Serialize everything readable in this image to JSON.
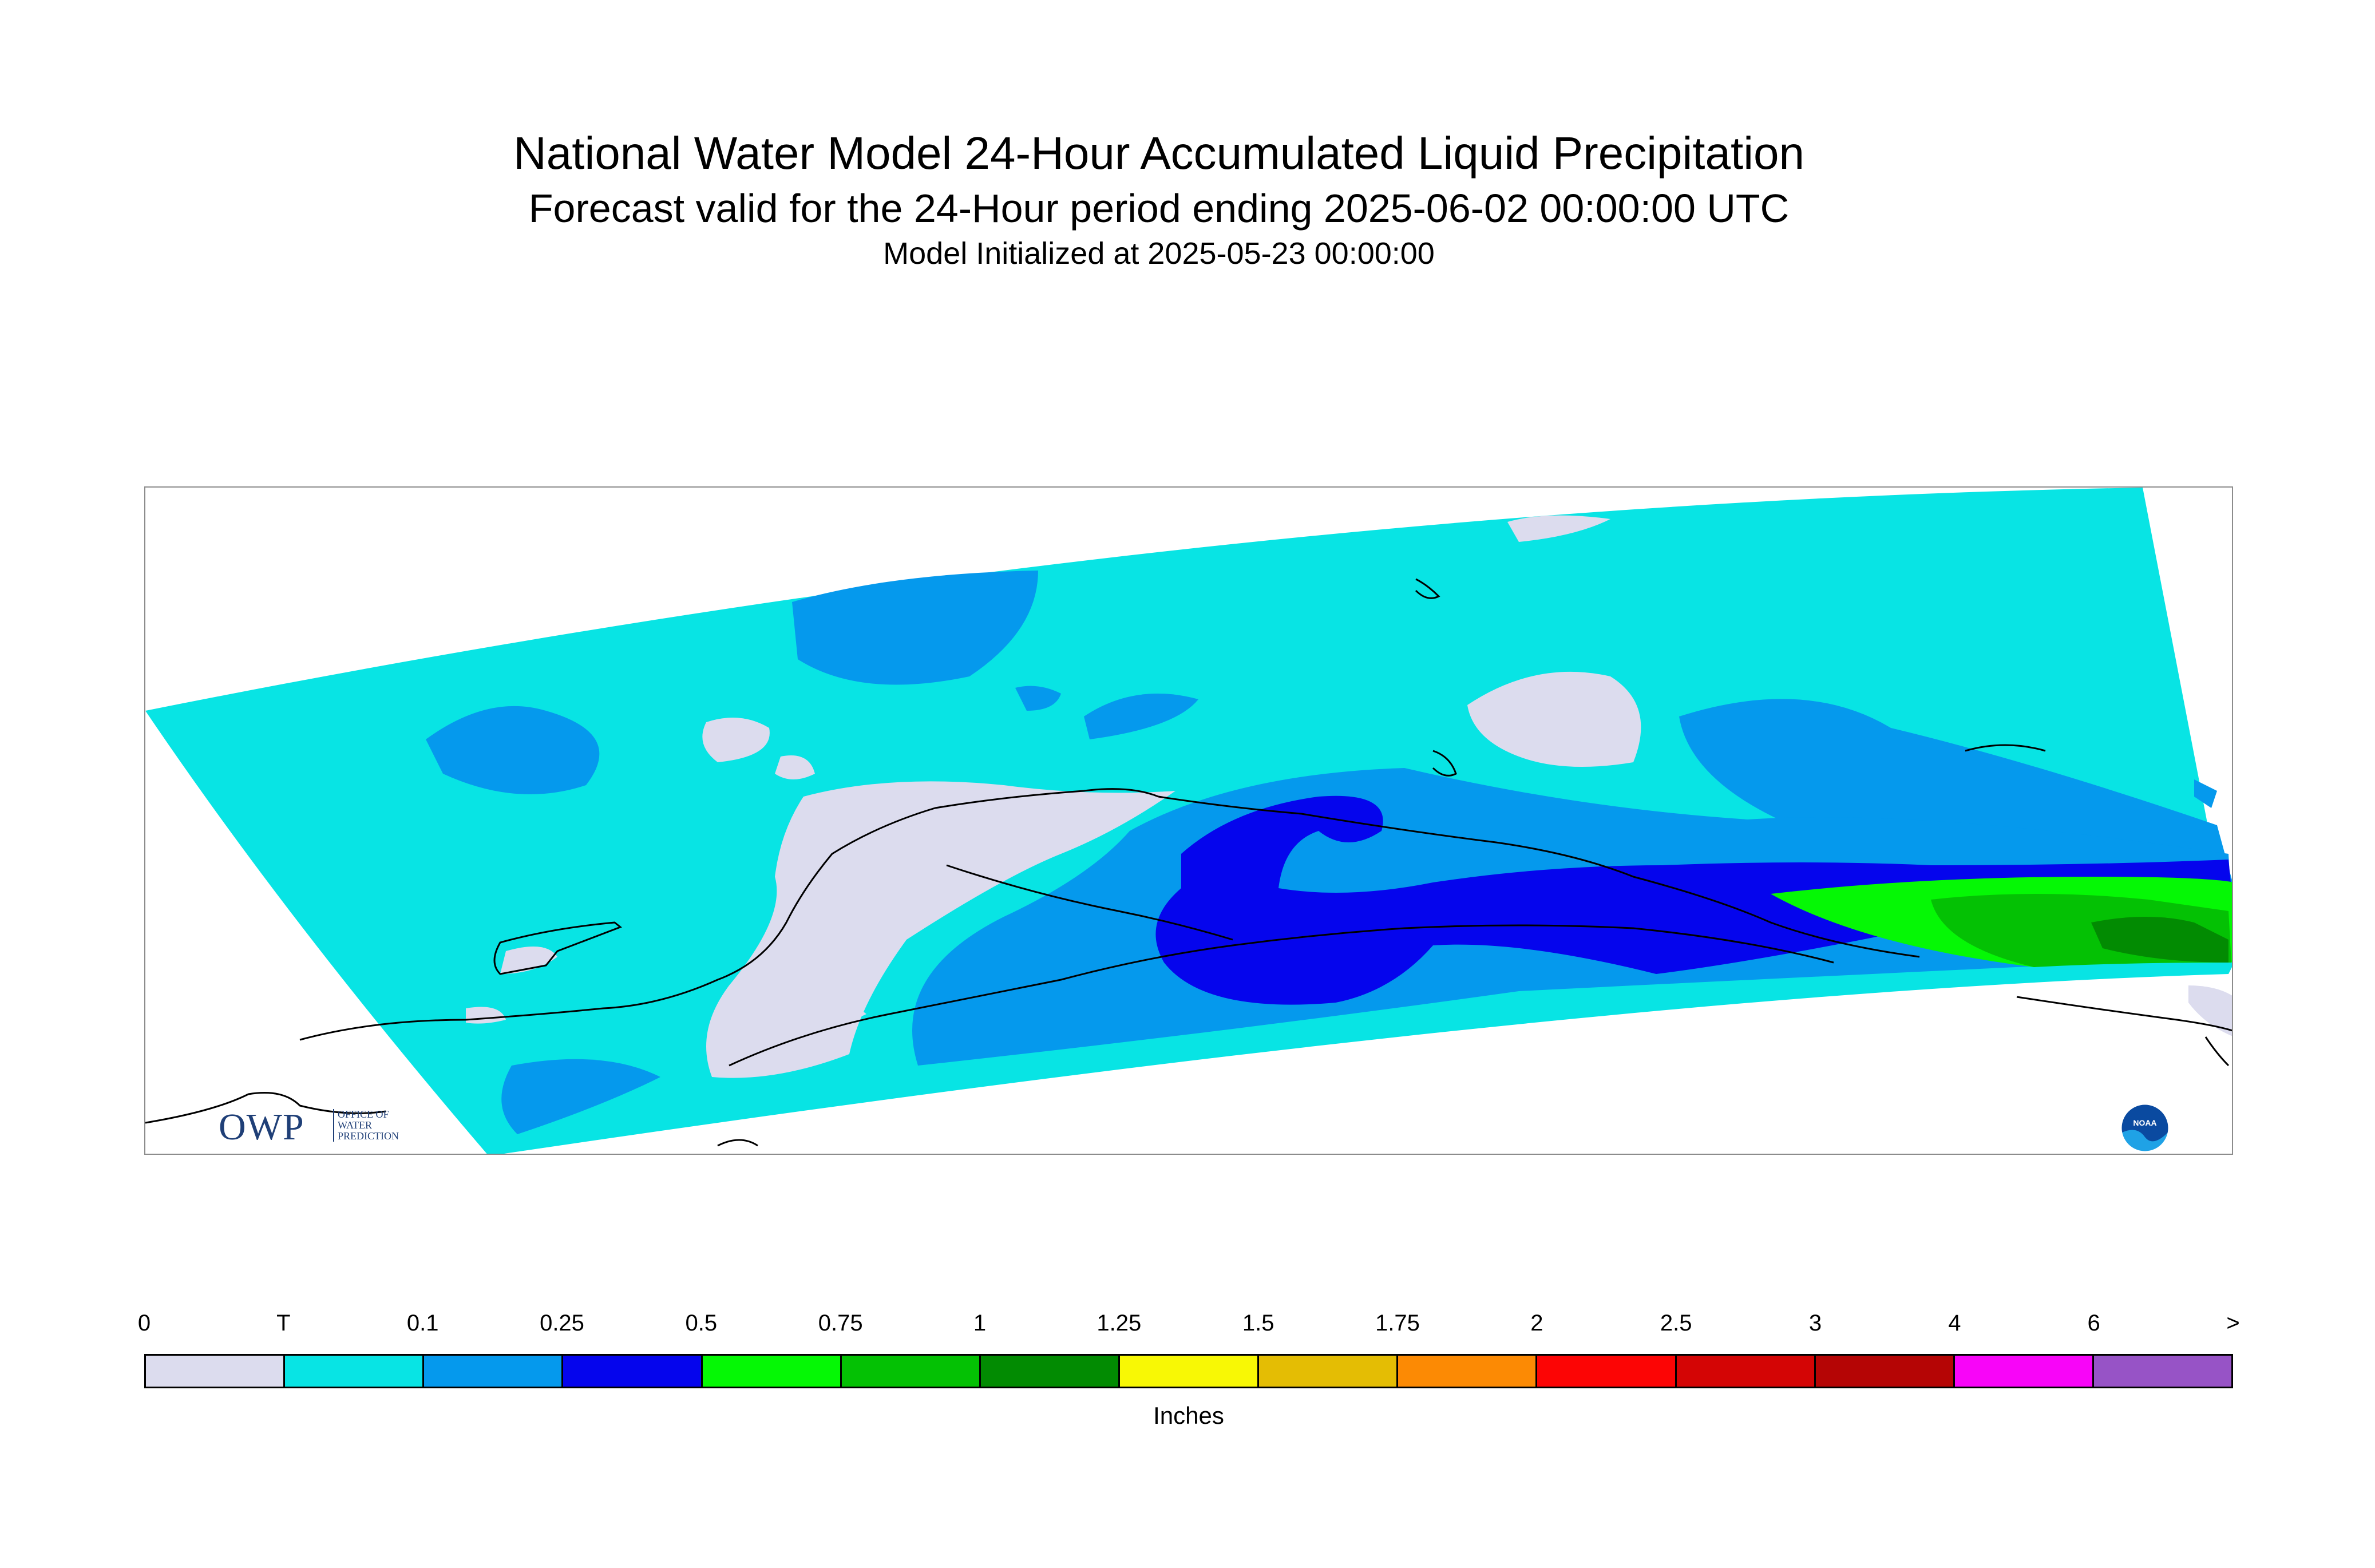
{
  "title": {
    "line1": "National Water Model 24-Hour Accumulated Liquid Precipitation",
    "line2": "Forecast valid for the 24-Hour period ending 2025-06-02 00:00:00 UTC",
    "line3": "Model Initialized at 2025-05-23 00:00:00"
  },
  "logos": {
    "owp_mark": "OWP",
    "owp_text": "OFFICE OF WATER PREDICTION",
    "noaa": "NOAA"
  },
  "legend": {
    "ticks": [
      "0",
      "T",
      "0.1",
      "0.25",
      "0.5",
      "0.75",
      "1",
      "1.25",
      "1.5",
      "1.75",
      "2",
      "2.5",
      "3",
      "4",
      "6",
      ">"
    ],
    "colors": [
      "#dcdcee",
      "#08e4e4",
      "#0599ed",
      "#0505ed",
      "#05f805",
      "#04c104",
      "#028b02",
      "#f8f805",
      "#e4bd04",
      "#fc8a04",
      "#fc0505",
      "#d40505",
      "#b50505",
      "#f805f8",
      "#9753c6"
    ],
    "units": "Inches"
  },
  "map": {
    "precip_colors": {
      "none": "#dcdcee",
      "trace": "#08e4e4",
      "light": "#0599ed",
      "moderate": "#0505ed",
      "heavy_light_green": "#05f805",
      "heavy_green": "#04c104",
      "heavy_dark_green": "#028b02"
    },
    "coastline_color": "#000000",
    "frame_color": "#8c8c8c"
  }
}
